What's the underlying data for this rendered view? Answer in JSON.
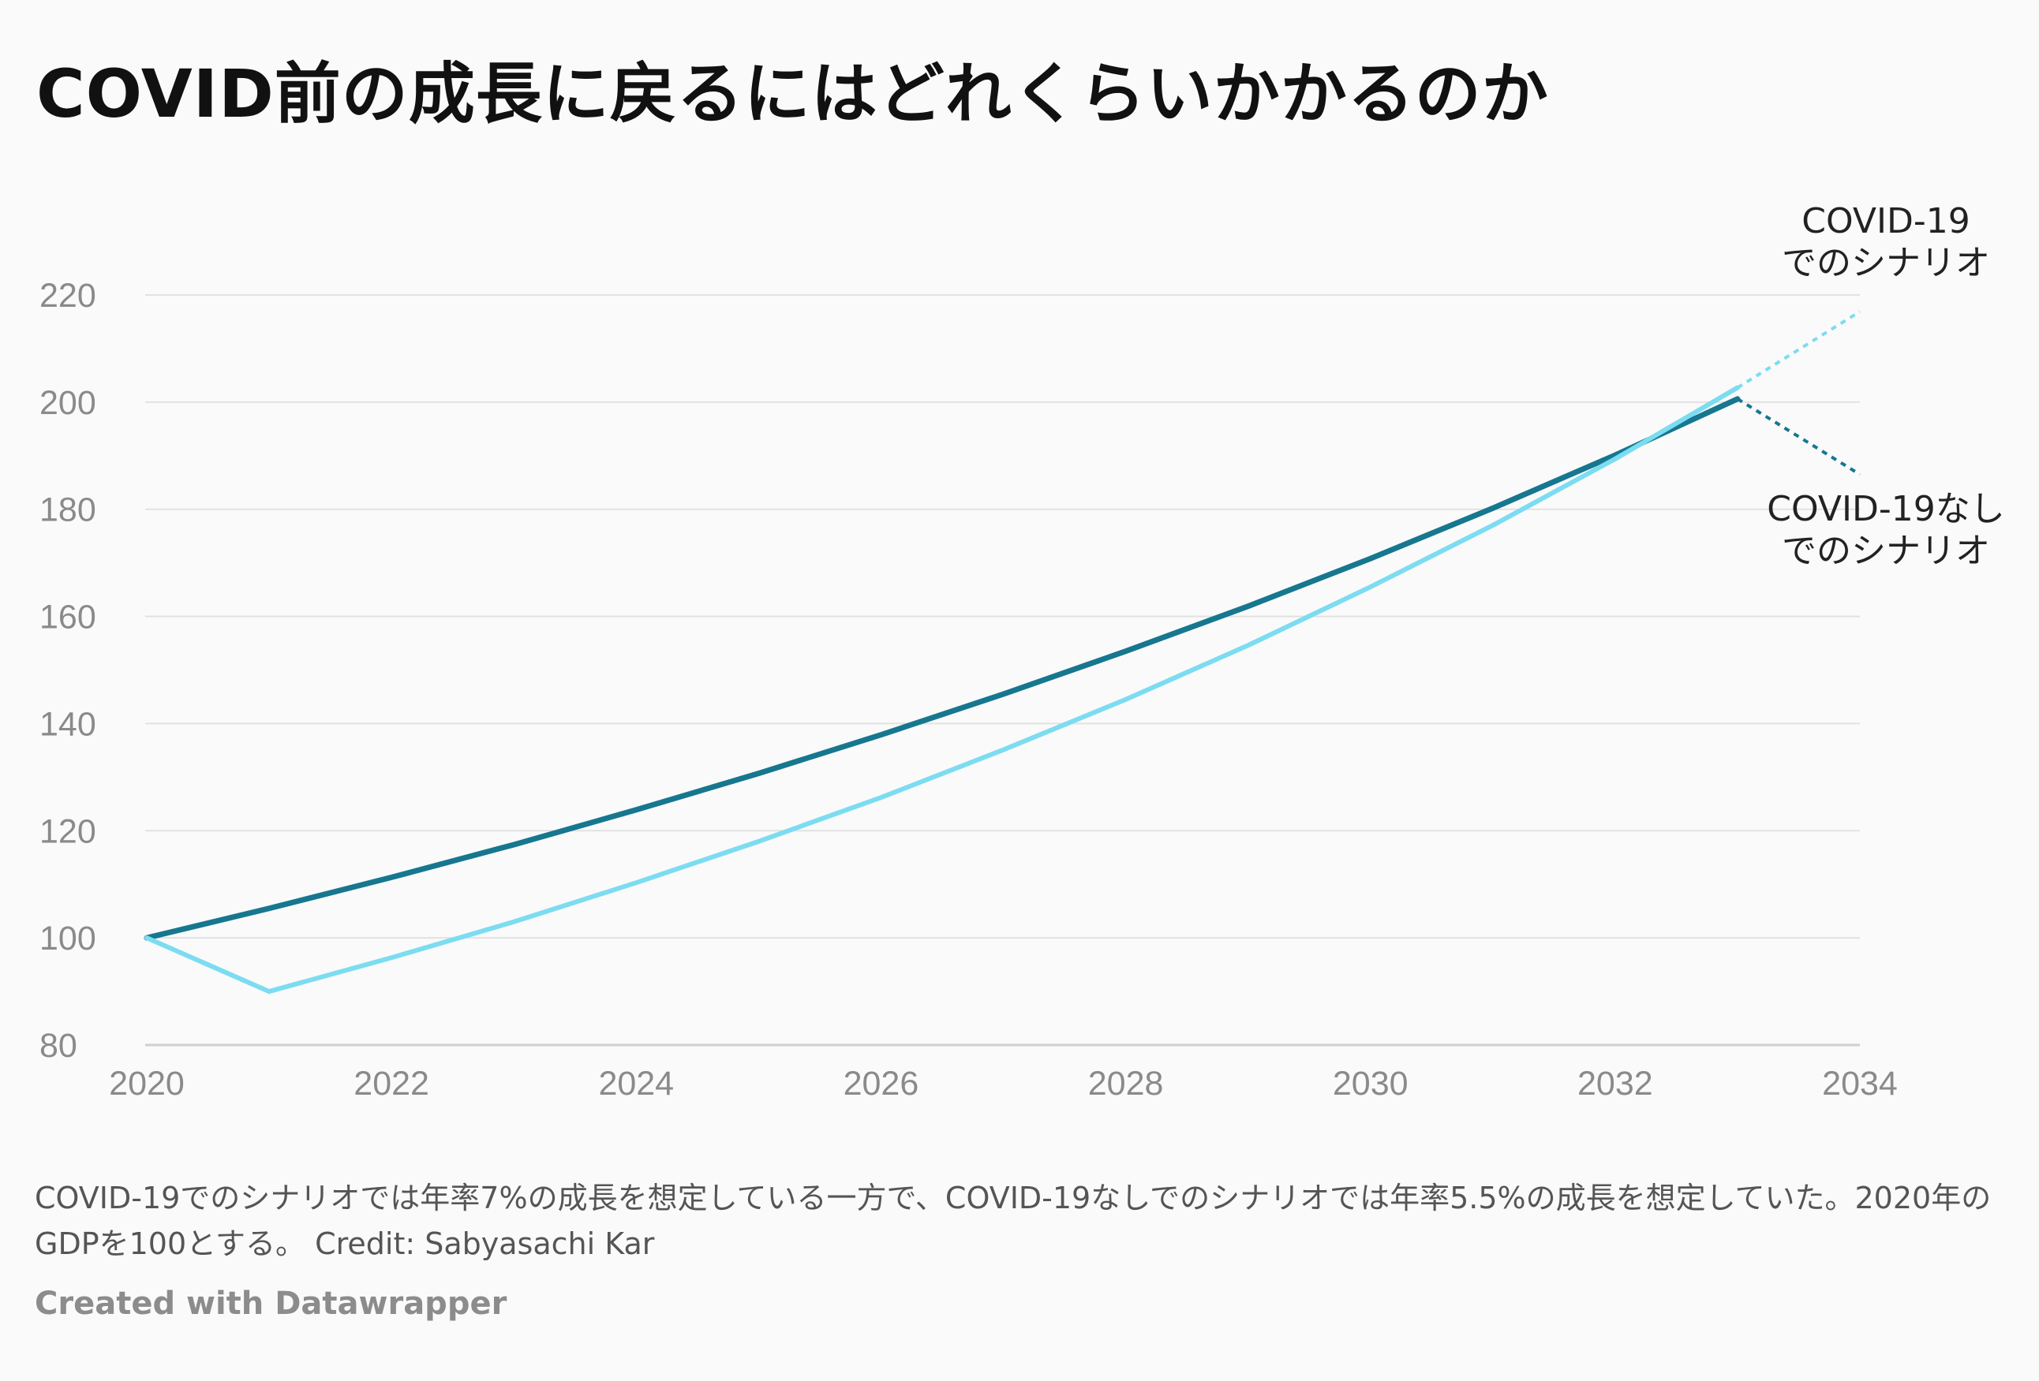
{
  "title": "COVID前の成長に戻るにはどれくらいかかるのか",
  "note": "COVID-19でのシナリオでは年率7%の成長を想定している一方で、COVID-19なしでのシナリオでは年率5.5%の成長を想定していた。2020年のGDPを100とする。 Credit: Sabyasachi Kar",
  "credit": "Created with Datawrapper",
  "chart_data": {
    "type": "line",
    "x": [
      2020,
      2021,
      2022,
      2023,
      2024,
      2025,
      2026,
      2027,
      2028,
      2029,
      2030,
      2031,
      2032,
      2033
    ],
    "xlim": [
      2020,
      2034
    ],
    "ylim": [
      80,
      220
    ],
    "xticks": [
      "2020",
      "2022",
      "2024",
      "2026",
      "2028",
      "2030",
      "2032",
      "2034"
    ],
    "yticks": [
      "80",
      "100",
      "120",
      "140",
      "160",
      "180",
      "200",
      "220"
    ],
    "grid": true,
    "series": [
      {
        "name": "COVID-19なしでのシナリオ",
        "label_lines": [
          "COVID-19なし",
          "でのシナリオ"
        ],
        "color": "#16778f",
        "values": [
          100,
          105.5,
          111.3,
          117.4,
          123.9,
          130.7,
          137.9,
          145.5,
          153.5,
          161.9,
          170.8,
          180.2,
          190.1,
          200.6
        ],
        "projection": [
          [
            2033,
            200.6
          ],
          [
            2034,
            186.5
          ]
        ]
      },
      {
        "name": "COVID-19でのシナリオ",
        "label_lines": [
          "COVID-19",
          "でのシナリオ"
        ],
        "color": "#7cdcf1",
        "values": [
          100,
          90,
          96.3,
          103.0,
          110.3,
          118.0,
          126.2,
          135.1,
          144.5,
          154.6,
          165.5,
          177.0,
          189.4,
          202.7
        ],
        "projection": [
          [
            2033,
            202.7
          ],
          [
            2034,
            216.9
          ]
        ]
      }
    ]
  }
}
